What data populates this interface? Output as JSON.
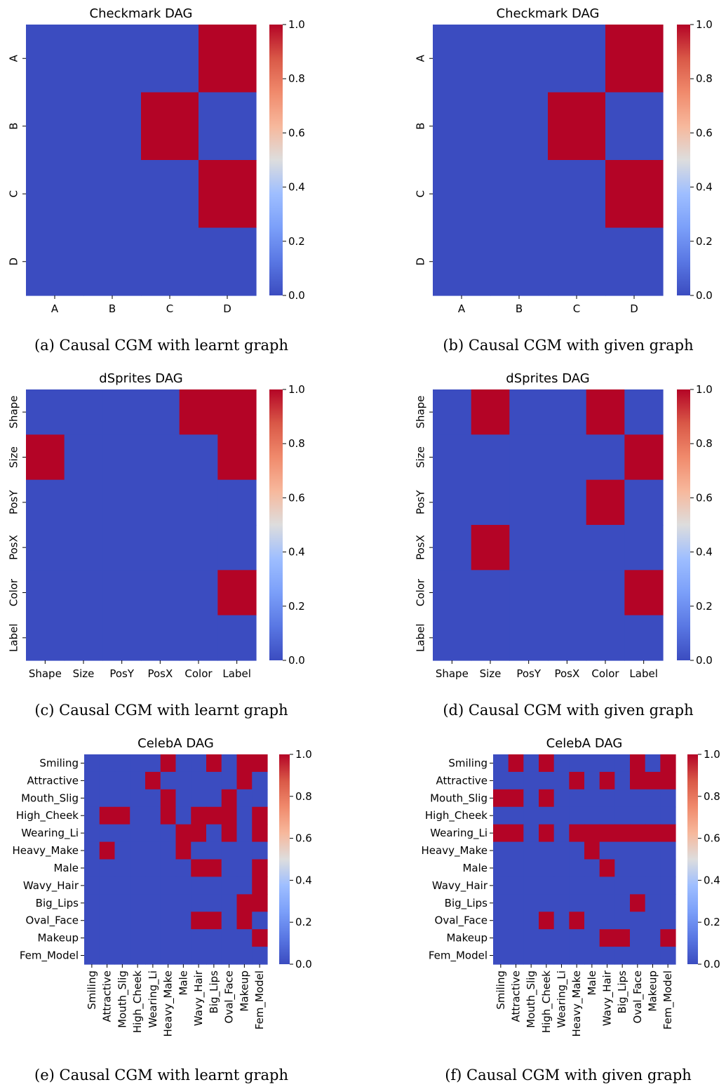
{
  "colors": {
    "zero": "#3b4cc0",
    "one": "#b40426"
  },
  "colorbar_ticks": [
    "0.0",
    "0.2",
    "0.4",
    "0.6",
    "0.8",
    "1.0"
  ],
  "captions": [
    "(a) Causal CGM with learnt graph",
    "(b) Causal CGM with given graph",
    "(c) Causal CGM with learnt graph",
    "(d) Causal CGM with given graph",
    "(e) Causal CGM with learnt graph",
    "(f) Causal CGM with given graph"
  ],
  "chart_data": [
    {
      "type": "heatmap",
      "title": "Checkmark DAG",
      "xlabels": [
        "A",
        "B",
        "C",
        "D"
      ],
      "ylabels": [
        "A",
        "B",
        "C",
        "D"
      ],
      "vlim": [
        0,
        1
      ],
      "values": [
        [
          0,
          0,
          0,
          1
        ],
        [
          0,
          0,
          1,
          0
        ],
        [
          0,
          0,
          0,
          1
        ],
        [
          0,
          0,
          0,
          0
        ]
      ]
    },
    {
      "type": "heatmap",
      "title": "Checkmark DAG",
      "xlabels": [
        "A",
        "B",
        "C",
        "D"
      ],
      "ylabels": [
        "A",
        "B",
        "C",
        "D"
      ],
      "vlim": [
        0,
        1
      ],
      "values": [
        [
          0,
          0,
          0,
          1
        ],
        [
          0,
          0,
          1,
          0
        ],
        [
          0,
          0,
          0,
          1
        ],
        [
          0,
          0,
          0,
          0
        ]
      ]
    },
    {
      "type": "heatmap",
      "title": "dSprites DAG",
      "xlabels": [
        "Shape",
        "Size",
        "PosY",
        "PosX",
        "Color",
        "Label"
      ],
      "ylabels": [
        "Shape",
        "Size",
        "PosY",
        "PosX",
        "Color",
        "Label"
      ],
      "vlim": [
        0,
        1
      ],
      "values": [
        [
          0,
          0,
          0,
          0,
          1,
          1
        ],
        [
          1,
          0,
          0,
          0,
          0,
          1
        ],
        [
          0,
          0,
          0,
          0,
          0,
          0
        ],
        [
          0,
          0,
          0,
          0,
          0,
          0
        ],
        [
          0,
          0,
          0,
          0,
          0,
          1
        ],
        [
          0,
          0,
          0,
          0,
          0,
          0
        ]
      ]
    },
    {
      "type": "heatmap",
      "title": "dSprites DAG",
      "xlabels": [
        "Shape",
        "Size",
        "PosY",
        "PosX",
        "Color",
        "Label"
      ],
      "ylabels": [
        "Shape",
        "Size",
        "PosY",
        "PosX",
        "Color",
        "Label"
      ],
      "vlim": [
        0,
        1
      ],
      "values": [
        [
          0,
          1,
          0,
          0,
          1,
          0
        ],
        [
          0,
          0,
          0,
          0,
          0,
          1
        ],
        [
          0,
          0,
          0,
          0,
          1,
          0
        ],
        [
          0,
          1,
          0,
          0,
          0,
          0
        ],
        [
          0,
          0,
          0,
          0,
          0,
          1
        ],
        [
          0,
          0,
          0,
          0,
          0,
          0
        ]
      ]
    },
    {
      "type": "heatmap",
      "title": "CelebA DAG",
      "xlabels": [
        "Smiling",
        "Attractive",
        "Mouth_Slig",
        "High_Cheek",
        "Wearing_Li",
        "Heavy_Make",
        "Male",
        "Wavy_Hair",
        "Big_Lips",
        "Oval_Face",
        "Makeup",
        "Fem_Model"
      ],
      "ylabels": [
        "Smiling",
        "Attractive",
        "Mouth_Slig",
        "High_Cheek",
        "Wearing_Li",
        "Heavy_Make",
        "Male",
        "Wavy_Hair",
        "Big_Lips",
        "Oval_Face",
        "Makeup",
        "Fem_Model"
      ],
      "vlim": [
        0,
        1
      ],
      "values": [
        [
          0,
          0,
          0,
          0,
          0,
          1,
          0,
          0,
          1,
          0,
          1,
          1
        ],
        [
          0,
          0,
          0,
          0,
          1,
          0,
          0,
          0,
          0,
          0,
          1,
          0
        ],
        [
          0,
          0,
          0,
          0,
          0,
          1,
          0,
          0,
          0,
          1,
          0,
          0
        ],
        [
          0,
          1,
          1,
          0,
          0,
          1,
          0,
          1,
          1,
          1,
          0,
          1
        ],
        [
          0,
          0,
          0,
          0,
          0,
          0,
          1,
          1,
          0,
          1,
          0,
          1
        ],
        [
          0,
          1,
          0,
          0,
          0,
          0,
          1,
          0,
          0,
          0,
          0,
          0
        ],
        [
          0,
          0,
          0,
          0,
          0,
          0,
          0,
          1,
          1,
          0,
          0,
          1
        ],
        [
          0,
          0,
          0,
          0,
          0,
          0,
          0,
          0,
          0,
          0,
          0,
          1
        ],
        [
          0,
          0,
          0,
          0,
          0,
          0,
          0,
          0,
          0,
          0,
          1,
          1
        ],
        [
          0,
          0,
          0,
          0,
          0,
          0,
          0,
          1,
          1,
          0,
          1,
          0
        ],
        [
          0,
          0,
          0,
          0,
          0,
          0,
          0,
          0,
          0,
          0,
          0,
          1
        ],
        [
          0,
          0,
          0,
          0,
          0,
          0,
          0,
          0,
          0,
          0,
          0,
          0
        ]
      ]
    },
    {
      "type": "heatmap",
      "title": "CelebA DAG",
      "xlabels": [
        "Smiling",
        "Attractive",
        "Mouth_Slig",
        "High_Cheek",
        "Wearing_Li",
        "Heavy_Make",
        "Male",
        "Wavy_Hair",
        "Big_Lips",
        "Oval_Face",
        "Makeup",
        "Fem_Model"
      ],
      "ylabels": [
        "Smiling",
        "Attractive",
        "Mouth_Slig",
        "High_Cheek",
        "Wearing_Li",
        "Heavy_Make",
        "Male",
        "Wavy_Hair",
        "Big_Lips",
        "Oval_Face",
        "Makeup",
        "Fem_Model"
      ],
      "vlim": [
        0,
        1
      ],
      "values": [
        [
          0,
          1,
          0,
          1,
          0,
          0,
          0,
          0,
          0,
          1,
          0,
          1
        ],
        [
          0,
          0,
          0,
          0,
          0,
          1,
          0,
          1,
          0,
          1,
          1,
          1
        ],
        [
          1,
          1,
          0,
          1,
          0,
          0,
          0,
          0,
          0,
          0,
          0,
          0
        ],
        [
          0,
          0,
          0,
          0,
          0,
          0,
          0,
          0,
          0,
          0,
          0,
          0
        ],
        [
          1,
          1,
          0,
          1,
          0,
          1,
          1,
          1,
          1,
          1,
          1,
          1
        ],
        [
          0,
          0,
          0,
          0,
          0,
          0,
          1,
          0,
          0,
          0,
          0,
          0
        ],
        [
          0,
          0,
          0,
          0,
          0,
          0,
          0,
          1,
          0,
          0,
          0,
          0
        ],
        [
          0,
          0,
          0,
          0,
          0,
          0,
          0,
          0,
          0,
          0,
          0,
          0
        ],
        [
          0,
          0,
          0,
          0,
          0,
          0,
          0,
          0,
          0,
          1,
          0,
          0
        ],
        [
          0,
          0,
          0,
          1,
          0,
          1,
          0,
          0,
          0,
          0,
          0,
          0
        ],
        [
          0,
          0,
          0,
          0,
          0,
          0,
          0,
          1,
          1,
          0,
          0,
          1
        ],
        [
          0,
          0,
          0,
          0,
          0,
          0,
          0,
          0,
          0,
          0,
          0,
          0
        ]
      ]
    }
  ]
}
